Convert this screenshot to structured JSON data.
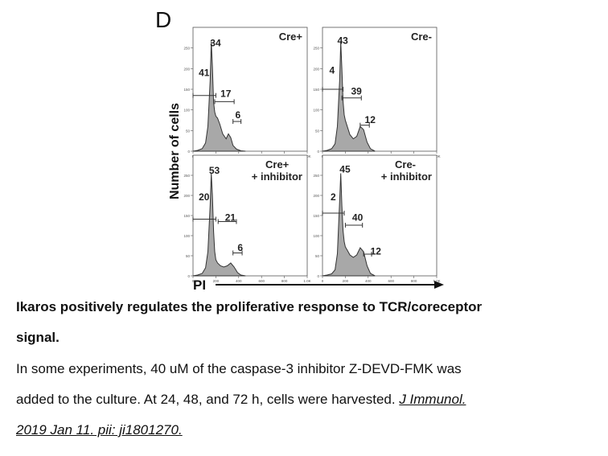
{
  "figure": {
    "panel_letter": "D",
    "ylabel": "Number of cells",
    "xlabel": "PI",
    "x_tick_labels": [
      "0",
      "200",
      "400",
      "600",
      "800",
      "1.0K"
    ]
  },
  "chart_data": [
    {
      "type": "area",
      "title": "Cre+",
      "xlim": [
        0,
        1000
      ],
      "ylim": [
        0,
        300
      ],
      "y_tick_labels": [
        "0",
        "50",
        "100",
        "150",
        "200",
        "250"
      ],
      "x": [
        0,
        40,
        80,
        110,
        130,
        150,
        160,
        170,
        180,
        190,
        200,
        215,
        235,
        260,
        290,
        310,
        330,
        350,
        380,
        420,
        460
      ],
      "values": [
        0,
        2,
        6,
        20,
        60,
        170,
        265,
        205,
        118,
        95,
        85,
        80,
        65,
        42,
        30,
        42,
        33,
        14,
        5,
        1,
        0
      ],
      "gate_labels": [
        "41",
        "34",
        "17",
        "6"
      ]
    },
    {
      "type": "area",
      "title": "Cre-",
      "xlim": [
        0,
        1000
      ],
      "ylim": [
        0,
        300
      ],
      "y_tick_labels": [
        "0",
        "50",
        "100",
        "150",
        "200",
        "250"
      ],
      "x": [
        0,
        40,
        80,
        110,
        130,
        150,
        160,
        170,
        180,
        190,
        200,
        215,
        240,
        270,
        300,
        330,
        360,
        390,
        420,
        460
      ],
      "values": [
        0,
        2,
        6,
        18,
        60,
        170,
        265,
        200,
        120,
        88,
        75,
        62,
        40,
        30,
        36,
        60,
        52,
        22,
        6,
        0
      ],
      "gate_labels": [
        "4",
        "43",
        "39",
        "12"
      ]
    },
    {
      "type": "area",
      "title": "Cre+\n+ inhibitor",
      "xlim": [
        0,
        1000
      ],
      "ylim": [
        0,
        300
      ],
      "y_tick_labels": [
        "0",
        "50",
        "100",
        "150",
        "200",
        "250"
      ],
      "x": [
        0,
        40,
        80,
        110,
        130,
        150,
        160,
        170,
        180,
        190,
        200,
        215,
        240,
        270,
        300,
        330,
        360,
        390,
        420,
        460
      ],
      "values": [
        0,
        2,
        6,
        20,
        60,
        175,
        255,
        200,
        110,
        60,
        40,
        32,
        25,
        22,
        25,
        32,
        22,
        8,
        2,
        0
      ],
      "gate_labels": [
        "20",
        "53",
        "21",
        "6"
      ]
    },
    {
      "type": "area",
      "title": "Cre-\n+ inhibitor",
      "xlim": [
        0,
        1000
      ],
      "ylim": [
        0,
        300
      ],
      "y_tick_labels": [
        "0",
        "50",
        "100",
        "150",
        "200",
        "250"
      ],
      "x": [
        0,
        40,
        80,
        110,
        130,
        150,
        160,
        170,
        180,
        190,
        200,
        215,
        240,
        270,
        300,
        330,
        360,
        390,
        420,
        460
      ],
      "values": [
        0,
        2,
        5,
        15,
        55,
        185,
        255,
        175,
        112,
        85,
        72,
        65,
        52,
        46,
        52,
        70,
        60,
        25,
        6,
        0
      ],
      "gate_labels": [
        "2",
        "45",
        "40",
        "12"
      ]
    }
  ],
  "caption": {
    "title_line1": "Ikaros positively regulates the proliferative response to TCR/coreceptor",
    "title_line2": "signal.",
    "body_line1": "In some experiments, 40 uM of the caspase-3 inhibitor Z-DEVD-FMK was",
    "body_line2_text": "added to the culture. At 24, 48, and 72 h, cells were harvested. ",
    "body_line2_link": "J Immunol. ",
    "body_line3_link": "2019 Jan 11. pii: ji1801270."
  }
}
